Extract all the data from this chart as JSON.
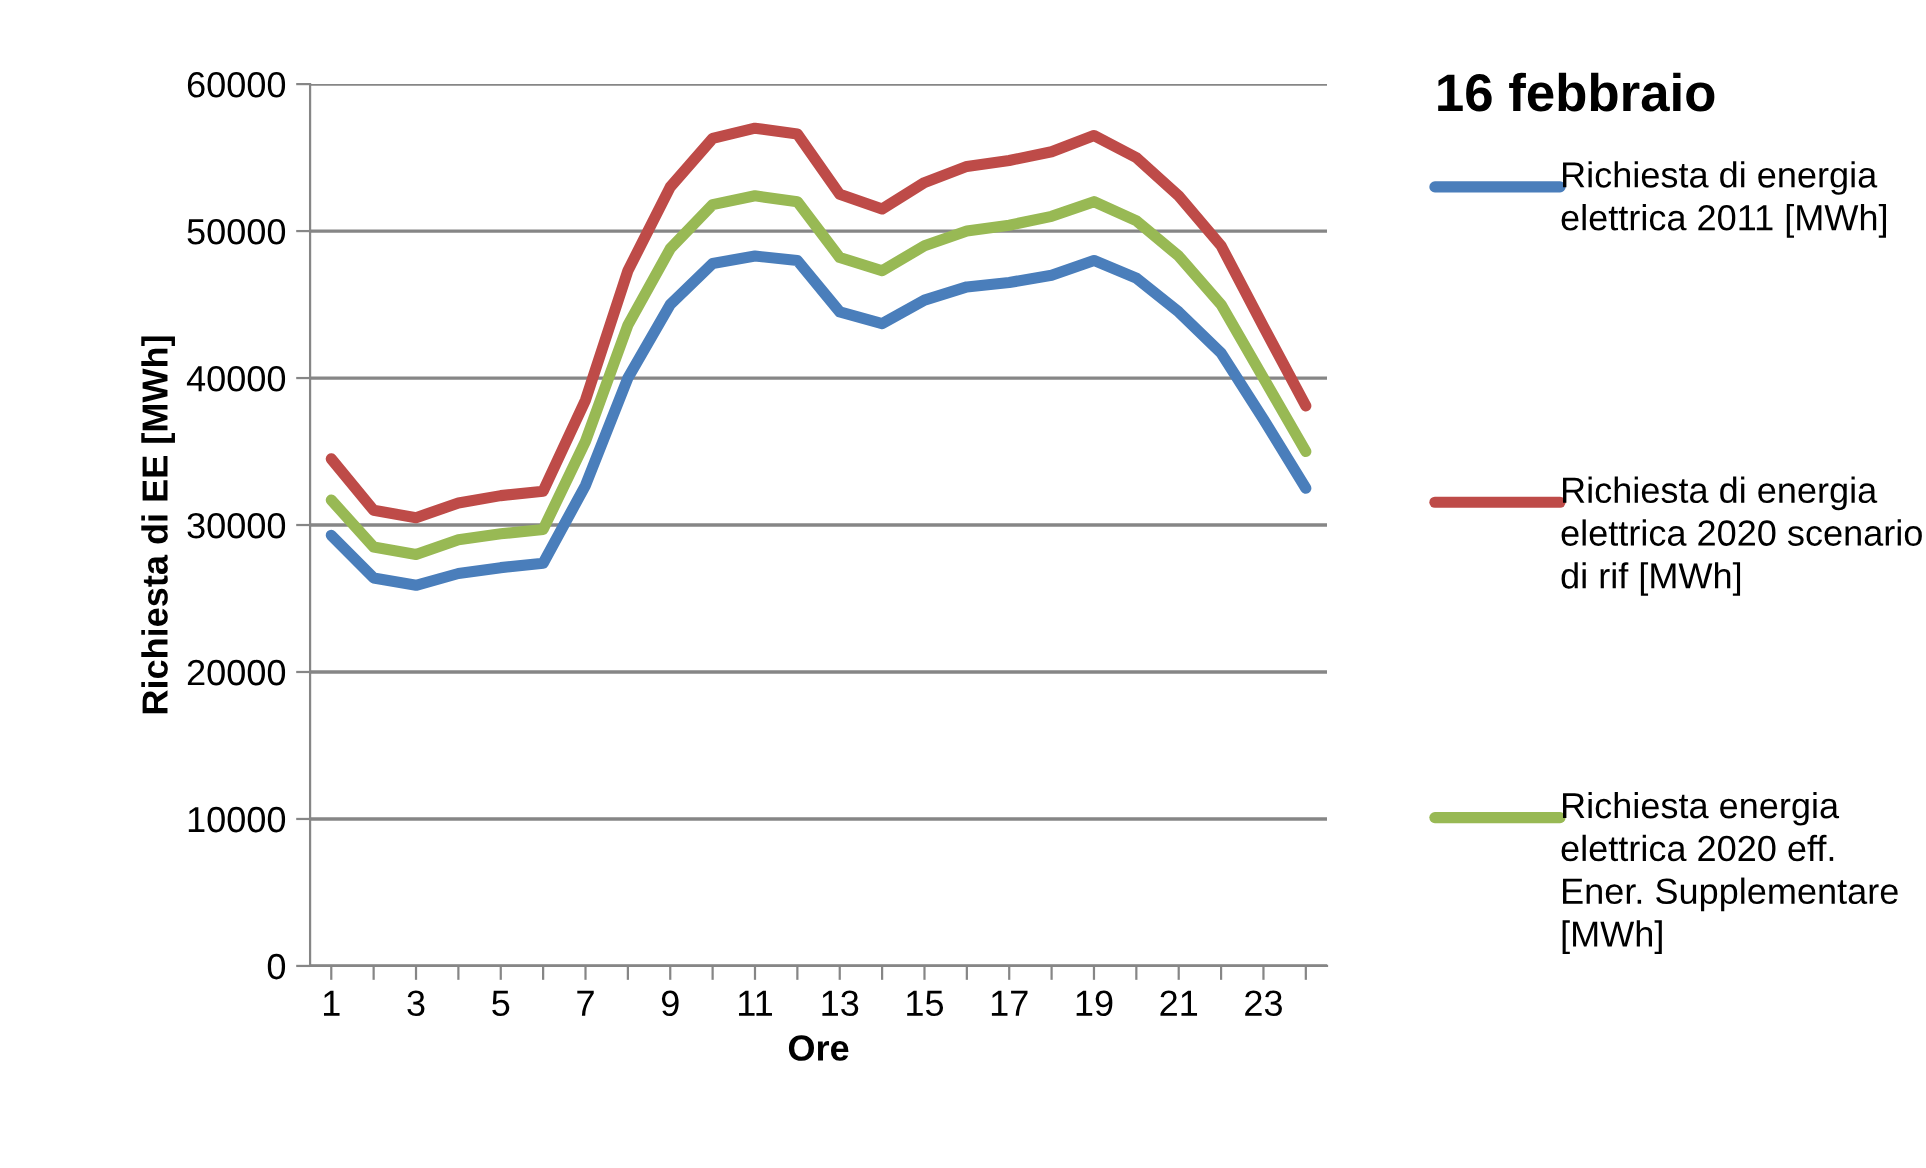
{
  "chart_data": {
    "type": "line",
    "title": "16 febbraio",
    "xlabel": "Ore",
    "ylabel": "Richiesta di EE [MWh]",
    "categories": [
      "1",
      null,
      "3",
      null,
      "5",
      null,
      "7",
      null,
      "9",
      null,
      "11",
      null,
      "13",
      null,
      "15",
      null,
      "17",
      null,
      "19",
      null,
      "21",
      null,
      "23",
      null
    ],
    "series": [
      {
        "name": "Richiesta di energia elettrica 2011 [MWh]",
        "color": "#4a7ebb",
        "values": [
          29300,
          26400,
          25900,
          26700,
          27100,
          27400,
          32700,
          40000,
          45000,
          47800,
          48300,
          48000,
          44500,
          43700,
          45300,
          46200,
          46500,
          47000,
          48000,
          46800,
          44500,
          41700,
          37200,
          32500
        ]
      },
      {
        "name": "Richiesta di energia elettrica 2020 scenario di rif [MWh]",
        "color": "#be4b48",
        "values": [
          34500,
          31000,
          30500,
          31500,
          32000,
          32300,
          38500,
          47300,
          53000,
          56300,
          57000,
          56600,
          52500,
          51500,
          53300,
          54400,
          54800,
          55400,
          56500,
          55000,
          52400,
          49000,
          43500,
          38100
        ]
      },
      {
        "name": "Richiesta energia elettrica 2020 eff. Ener. Supplementare [MWh]",
        "color": "#98b954",
        "values": [
          31700,
          28500,
          28000,
          29000,
          29400,
          29700,
          35700,
          43600,
          48800,
          51800,
          52400,
          52000,
          48200,
          47300,
          49000,
          50000,
          50400,
          51000,
          52000,
          50700,
          48300,
          45000,
          40000,
          35000
        ]
      }
    ],
    "ylim": [
      0,
      60000
    ],
    "yticks": [
      0,
      10000,
      20000,
      30000,
      40000,
      50000,
      60000
    ],
    "grid": "y",
    "legend": "right",
    "marker": "none",
    "line_style": "solid"
  }
}
